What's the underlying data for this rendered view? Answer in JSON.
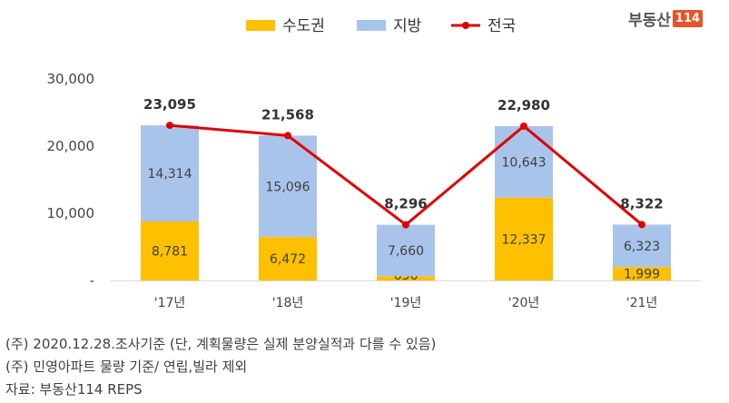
{
  "brand": {
    "name": "부동산",
    "number": "114"
  },
  "chart_data": {
    "type": "bar",
    "stacked": true,
    "categories": [
      "'17년",
      "'18년",
      "'19년",
      "'20년",
      "'21년"
    ],
    "series": [
      {
        "name": "수도권",
        "type": "bar",
        "color": "#FFC000",
        "values": [
          8781,
          6472,
          636,
          12337,
          1999
        ],
        "labels": [
          "8,781",
          "6,472",
          "636",
          "12,337",
          "1,999"
        ]
      },
      {
        "name": "지방",
        "type": "bar",
        "color": "#A9C4EB",
        "values": [
          14314,
          15096,
          7660,
          10643,
          6323
        ],
        "labels": [
          "14,314",
          "15,096",
          "7,660",
          "10,643",
          "6,323"
        ]
      },
      {
        "name": "전국",
        "type": "line",
        "color": "#E00000",
        "values": [
          23095,
          21568,
          8296,
          22980,
          8322
        ],
        "labels": [
          "23,095",
          "21,568",
          "8,296",
          "22,980",
          "8,322"
        ]
      }
    ],
    "yticks": [
      "-",
      "10,000",
      "20,000",
      "30,000"
    ],
    "ylim": [
      0,
      30000
    ],
    "grid": false,
    "legend_position": "top-center"
  },
  "notes": [
    "(주) 2020.12.28.조사기준 (단, 계획물량은 실제 분양실적과 다를 수 있음)",
    "(주) 민영아파트 물량 기준/ 연립,빌라 제외",
    "자료: 부동산114 REPS"
  ]
}
